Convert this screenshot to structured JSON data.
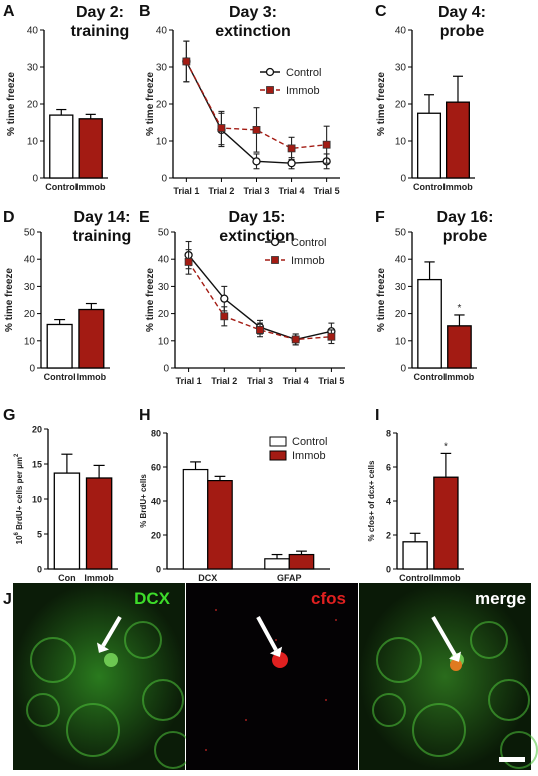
{
  "panels": [
    "A",
    "B",
    "C",
    "D",
    "E",
    "F",
    "G",
    "H",
    "I",
    "J"
  ],
  "colors": {
    "control_fill": "#ffffff",
    "immob_fill": "#a31b13",
    "axis": "#000000",
    "dcx": "#3ddc2a",
    "cfos": "#e02020",
    "merge": "#ffffff"
  },
  "chart_data": [
    {
      "id": "A",
      "type": "bar",
      "title": "Day 2:\ntraining",
      "ylabel": "% time freeze",
      "categories": [
        "Control",
        "Immob"
      ],
      "values": [
        17,
        16
      ],
      "errors": [
        1.5,
        1.2
      ],
      "ylim": [
        0,
        40
      ],
      "yticks": [
        0,
        10,
        20,
        30,
        40
      ]
    },
    {
      "id": "B",
      "type": "line",
      "title": "Day 3:\nextinction",
      "ylabel": "% time freeze",
      "categories": [
        "Trial 1",
        "Trial 2",
        "Trial 3",
        "Trial 4",
        "Trial 5"
      ],
      "ylim": [
        0,
        40
      ],
      "yticks": [
        0,
        10,
        20,
        30,
        40
      ],
      "legend": "top-right",
      "series": [
        {
          "name": "Control",
          "values": [
            31.5,
            13,
            4.5,
            4,
            4.5
          ],
          "errors": [
            5.5,
            4.5,
            2,
            1.5,
            2
          ]
        },
        {
          "name": "Immob",
          "values": [
            31.5,
            13.5,
            13,
            8,
            9
          ],
          "errors": [
            5.5,
            4.5,
            6,
            3,
            5
          ]
        }
      ]
    },
    {
      "id": "C",
      "type": "bar",
      "title": "Day 4:\nprobe",
      "ylabel": "% time freeze",
      "categories": [
        "Control",
        "Immob"
      ],
      "values": [
        17.5,
        20.5
      ],
      "errors": [
        5,
        7
      ],
      "ylim": [
        0,
        40
      ],
      "yticks": [
        0,
        10,
        20,
        30,
        40
      ]
    },
    {
      "id": "D",
      "type": "bar",
      "title": "Day 14:\ntraining",
      "ylabel": "% time freeze",
      "categories": [
        "Control",
        "Immob"
      ],
      "values": [
        16,
        21.5
      ],
      "errors": [
        1.8,
        2.2
      ],
      "ylim": [
        0,
        50
      ],
      "yticks": [
        0,
        10,
        20,
        30,
        40,
        50
      ]
    },
    {
      "id": "E",
      "type": "line",
      "title": "Day 15:\nextinction",
      "ylabel": "% time freeze",
      "categories": [
        "Trial 1",
        "Trial 2",
        "Trial 3",
        "Trial 4",
        "Trial 5"
      ],
      "ylim": [
        0,
        50
      ],
      "yticks": [
        0,
        10,
        20,
        30,
        40,
        50
      ],
      "legend": "top-right",
      "series": [
        {
          "name": "Control",
          "values": [
            41.5,
            25.5,
            15,
            10.5,
            13.5
          ],
          "errors": [
            5,
            4.5,
            2.5,
            2,
            3
          ]
        },
        {
          "name": "Immob",
          "values": [
            39,
            19,
            14,
            10.5,
            11.5
          ],
          "errors": [
            4.5,
            3.5,
            2.5,
            2,
            2.5
          ]
        }
      ]
    },
    {
      "id": "F",
      "type": "bar",
      "title": "Day 16:\nprobe",
      "ylabel": "% time freeze",
      "categories": [
        "Control",
        "Immob"
      ],
      "values": [
        32.5,
        15.5
      ],
      "errors": [
        6.5,
        4
      ],
      "ylim": [
        0,
        50
      ],
      "yticks": [
        0,
        10,
        20,
        30,
        40,
        50
      ],
      "sig": [
        false,
        true
      ]
    },
    {
      "id": "G",
      "type": "bar",
      "title": "",
      "ylabel": "10^6 BrdU+ cells per µm^2",
      "categories": [
        "Con",
        "Immob"
      ],
      "values": [
        13.7,
        13
      ],
      "errors": [
        2.7,
        1.8
      ],
      "ylim": [
        0,
        20
      ],
      "yticks": [
        0,
        5,
        10,
        15,
        20
      ]
    },
    {
      "id": "H",
      "type": "bar",
      "title": "",
      "ylabel": "% BrdU+ cells",
      "categories": [
        "DCX",
        "GFAP"
      ],
      "legend": "top-right",
      "series": [
        {
          "name": "Control",
          "values": [
            58.5,
            6
          ],
          "errors": [
            4.5,
            2.5
          ]
        },
        {
          "name": "Immob",
          "values": [
            52,
            8.5
          ],
          "errors": [
            2.5,
            2
          ]
        }
      ],
      "ylim": [
        0,
        80
      ],
      "yticks": [
        0,
        20,
        40,
        60,
        80
      ]
    },
    {
      "id": "I",
      "type": "bar",
      "title": "",
      "ylabel": "% cfos+ of dcx+ cells",
      "categories": [
        "Control",
        "Immob"
      ],
      "values": [
        1.6,
        5.4
      ],
      "errors": [
        0.5,
        1.4
      ],
      "ylim": [
        0,
        8
      ],
      "yticks": [
        0,
        2,
        4,
        6,
        8
      ],
      "sig": [
        false,
        true
      ]
    }
  ],
  "micrographs": {
    "dcx_label": "DCX",
    "cfos_label": "cfos",
    "merge_label": "merge"
  },
  "sig_mark": "*"
}
